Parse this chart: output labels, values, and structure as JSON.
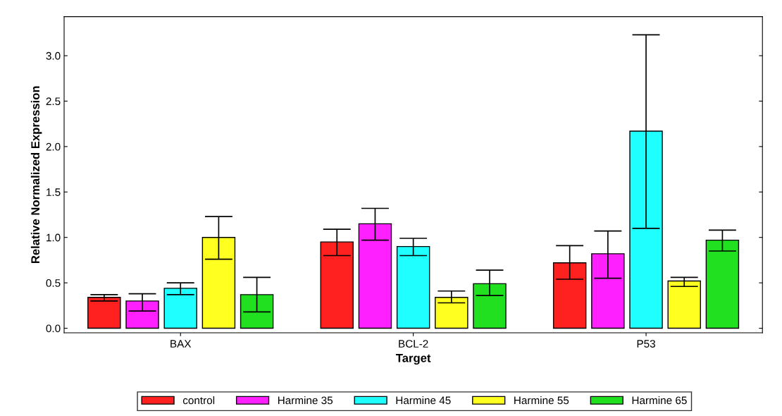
{
  "chart_data": {
    "type": "bar",
    "xlabel": "Target",
    "ylabel": "Relative Normalized Expression",
    "categories": [
      "BAX",
      "BCL-2",
      "P53"
    ],
    "series": [
      {
        "name": "control",
        "color": "#ff2020",
        "values": [
          0.34,
          0.95,
          0.72
        ],
        "errors": [
          [
            0.3,
            0.37
          ],
          [
            0.8,
            1.09
          ],
          [
            0.54,
            0.91
          ]
        ]
      },
      {
        "name": "Harmine 35",
        "color": "#ff20ff",
        "values": [
          0.3,
          1.15,
          0.82
        ],
        "errors": [
          [
            0.19,
            0.38
          ],
          [
            0.97,
            1.32
          ],
          [
            0.55,
            1.07
          ]
        ]
      },
      {
        "name": "Harmine 45",
        "color": "#20ffff",
        "values": [
          0.44,
          0.9,
          2.17
        ],
        "errors": [
          [
            0.37,
            0.5
          ],
          [
            0.8,
            0.99
          ],
          [
            1.1,
            3.23
          ]
        ]
      },
      {
        "name": "Harmine 55",
        "color": "#ffff20",
        "values": [
          1.0,
          0.34,
          0.52
        ],
        "errors": [
          [
            0.76,
            1.23
          ],
          [
            0.28,
            0.41
          ],
          [
            0.46,
            0.56
          ]
        ]
      },
      {
        "name": "Harmine 65",
        "color": "#20e020",
        "values": [
          0.37,
          0.49,
          0.97
        ],
        "errors": [
          [
            0.18,
            0.56
          ],
          [
            0.36,
            0.64
          ],
          [
            0.85,
            1.08
          ]
        ]
      }
    ],
    "ylim": [
      -0.05,
      3.43
    ],
    "yticks": [
      {
        "value": 0,
        "label": "0.0"
      },
      {
        "value": 0.5,
        "label": "0.5"
      },
      {
        "value": 1,
        "label": "1.0"
      },
      {
        "value": 1.5,
        "label": "1.5"
      },
      {
        "value": 2,
        "label": "2.0"
      },
      {
        "value": 2.5,
        "label": "2.5"
      },
      {
        "value": 3,
        "label": "3.0"
      }
    ],
    "grid": false,
    "legend": "bottom"
  }
}
